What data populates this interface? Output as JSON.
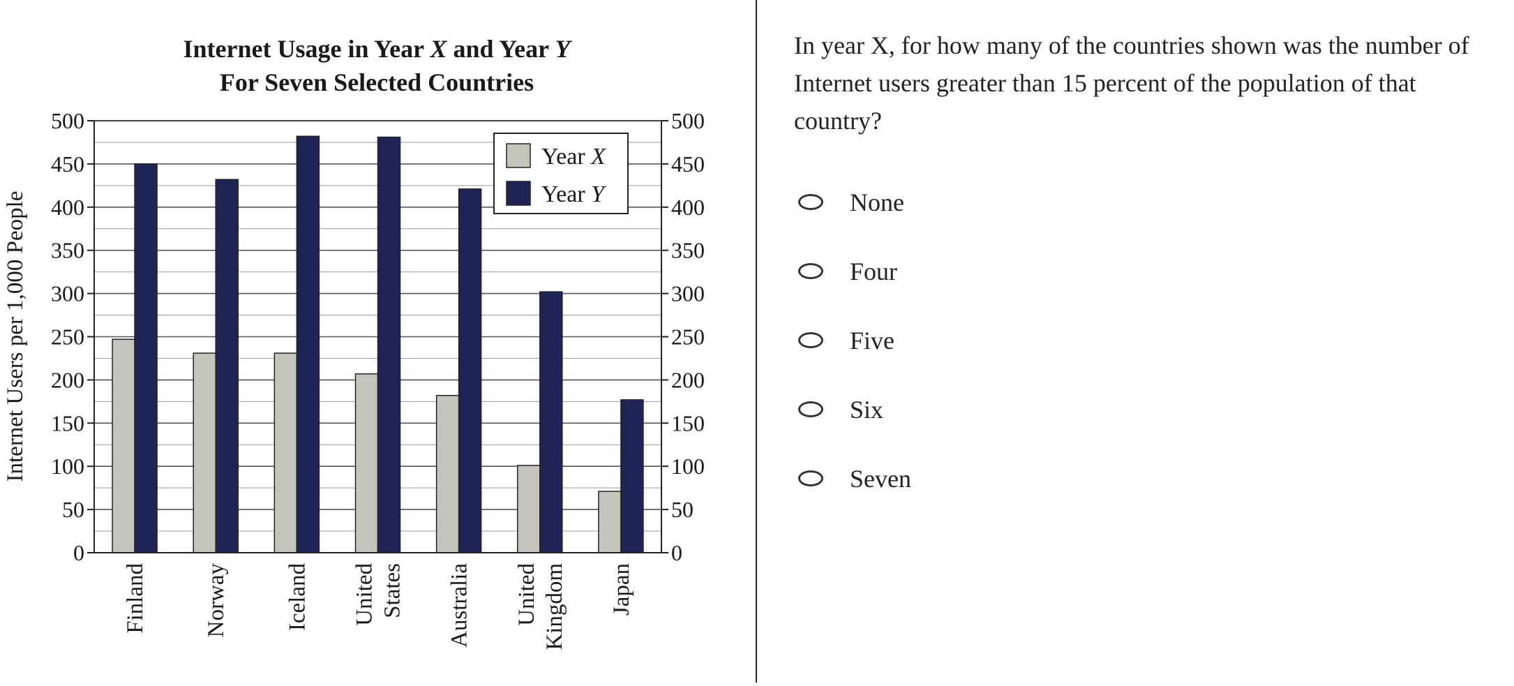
{
  "chart_data": {
    "type": "bar",
    "title_line1_parts": [
      "Internet Usage in Year ",
      "X",
      " and Year ",
      "Y"
    ],
    "title_line2": "For Seven Selected Countries",
    "ylabel": "Internet Users per 1,000 People",
    "ylim": [
      0,
      500
    ],
    "yticks": [
      "0",
      "50",
      "100",
      "150",
      "200",
      "250",
      "300",
      "350",
      "400",
      "450",
      "500"
    ],
    "categories": [
      [
        "Finland"
      ],
      [
        "Norway"
      ],
      [
        "Iceland"
      ],
      [
        "United",
        "States"
      ],
      [
        "Australia"
      ],
      [
        "United",
        "Kingdom"
      ],
      [
        "Japan"
      ]
    ],
    "series": [
      {
        "legend_prefix": "Year ",
        "legend_var": "X",
        "color": "#c4c5bd",
        "values": [
          247,
          231,
          231,
          207,
          182,
          101,
          71
        ]
      },
      {
        "legend_prefix": "Year ",
        "legend_var": "Y",
        "color": "#1f2356",
        "values": [
          450,
          432,
          482,
          481,
          421,
          302,
          177
        ]
      }
    ],
    "grid": true,
    "legend_position": "top-right"
  },
  "question": "In year X, for how many of the countries shown was the number of Internet users greater than 15 percent of the population of that country?",
  "choices": [
    "None",
    "Four",
    "Five",
    "Six",
    "Seven"
  ]
}
